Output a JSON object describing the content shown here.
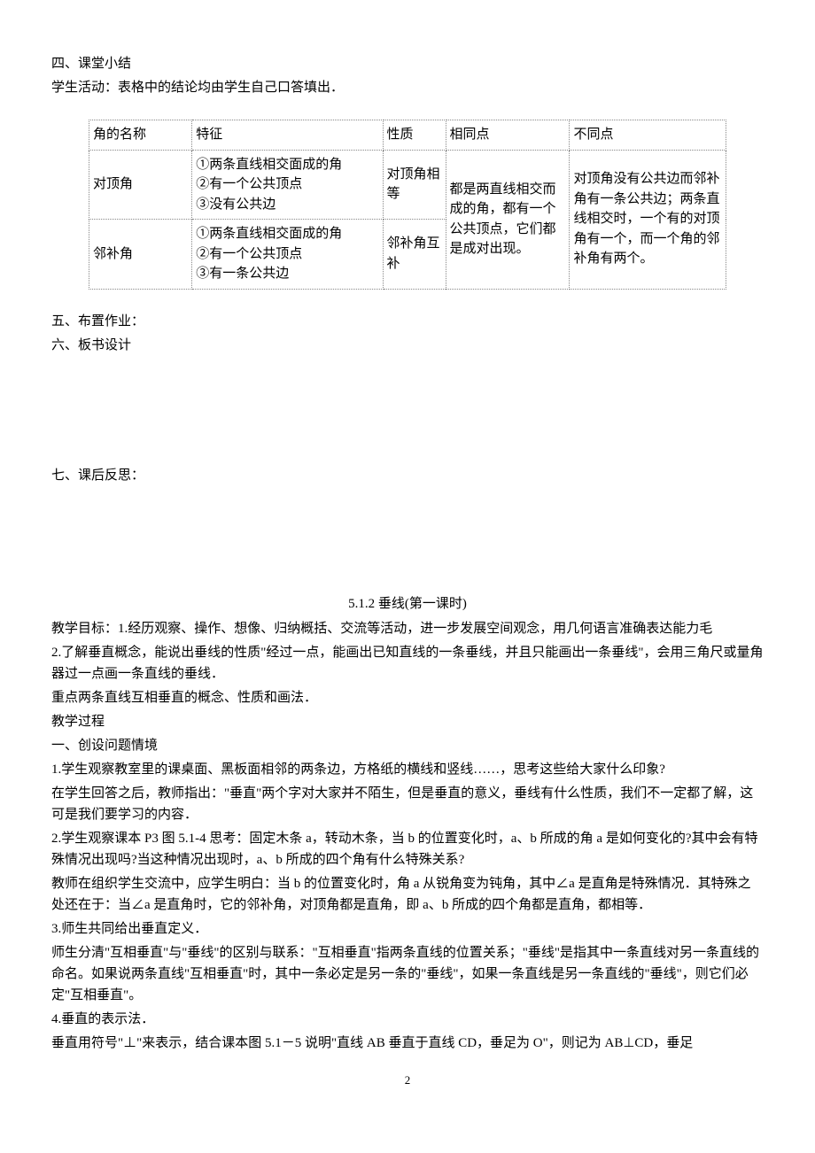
{
  "section4": {
    "heading": "四、课堂小结",
    "line2": "学生活动：表格中的结论均由学生自己口答填出．"
  },
  "table": {
    "header": {
      "c1": "角的名称",
      "c2": "特征",
      "c3": "性质",
      "c4": "相同点",
      "c5": "不同点"
    },
    "row1": {
      "c1": "对顶角",
      "c2": "①两条直线相交面成的角\n②有一个公共顶点\n③没有公共边",
      "c3": "对顶角相等"
    },
    "row2": {
      "c1": "邻补角",
      "c2": "①两条直线相交面成的角\n②有一个公共顶点\n③有一条公共边",
      "c3": "邻补角互补"
    },
    "shared_same": "都是两直线相交而成的角，都有一个公共顶点，它们都是成对出现。",
    "shared_diff": "对顶角没有公共边而邻补角有一条公共边；两条直线相交时，一个有的对顶角有一个，而一个角的邻补角有两个。"
  },
  "section5": "五、布置作业：",
  "section6": "六、板书设计",
  "section7": "七、课后反思：",
  "lesson": {
    "title": "5.1.2 垂线(第一课时)",
    "goals_label": "教学目标：1.经历观察、操作、想像、归纳概括、交流等活动，进一步发展空间观念，用几何语言准确表达能力毛",
    "goal2": "2.了解垂直概念，能说出垂线的性质\"经过一点，能画出已知直线的一条垂线，并且只能画出一条垂线\"，会用三角尺或量角器过一点画一条直线的垂线．",
    "focus": "重点两条直线互相垂直的概念、性质和画法．",
    "process": "教学过程",
    "part1_title": "一、创设问题情境",
    "p1": "1.学生观察教室里的课桌面、黑板面相邻的两条边，方格纸的横线和竖线……，思考这些给大家什么印象?",
    "p1b": "在学生回答之后，教师指出：\"垂直\"两个字对大家并不陌生，但是垂直的意义，垂线有什么性质，我们不一定都了解，这可是我们要学习的内容．",
    "p2": "2.学生观察课本 P3 图 5.1-4 思考：固定木条 a，转动木条，当 b 的位置变化时，a、b 所成的角 a 是如何变化的?其中会有特殊情况出现吗?当这种情况出现时，a、b 所成的四个角有什么特殊关系?",
    "p2b": "教师在组织学生交流中，应学生明白：当 b 的位置变化时，角 a 从锐角变为钝角，其中∠a 是直角是特殊情况．其特殊之处还在于：当∠a 是直角时，它的邻补角，对顶角都是直角，即 a、b 所成的四个角都是直角，都相等．",
    "p3": "3.师生共同给出垂直定义．",
    "p3b": "师生分清\"互相垂直\"与\"垂线\"的区别与联系：\"互相垂直\"指两条直线的位置关系；\"垂线\"是指其中一条直线对另一条直线的命名。如果说两条直线\"互相垂直\"时，其中一条必定是另一条的\"垂线\"，如果一条直线是另一条直线的\"垂线\"，则它们必定\"互相垂直\"。",
    "p4": "4.垂直的表示法．",
    "p4b": "垂直用符号\"⊥\"来表示，结合课本图 5.1－5 说明\"直线 AB 垂直于直线 CD，垂足为 O\"，则记为 AB⊥CD，垂足"
  },
  "page_number": "2"
}
